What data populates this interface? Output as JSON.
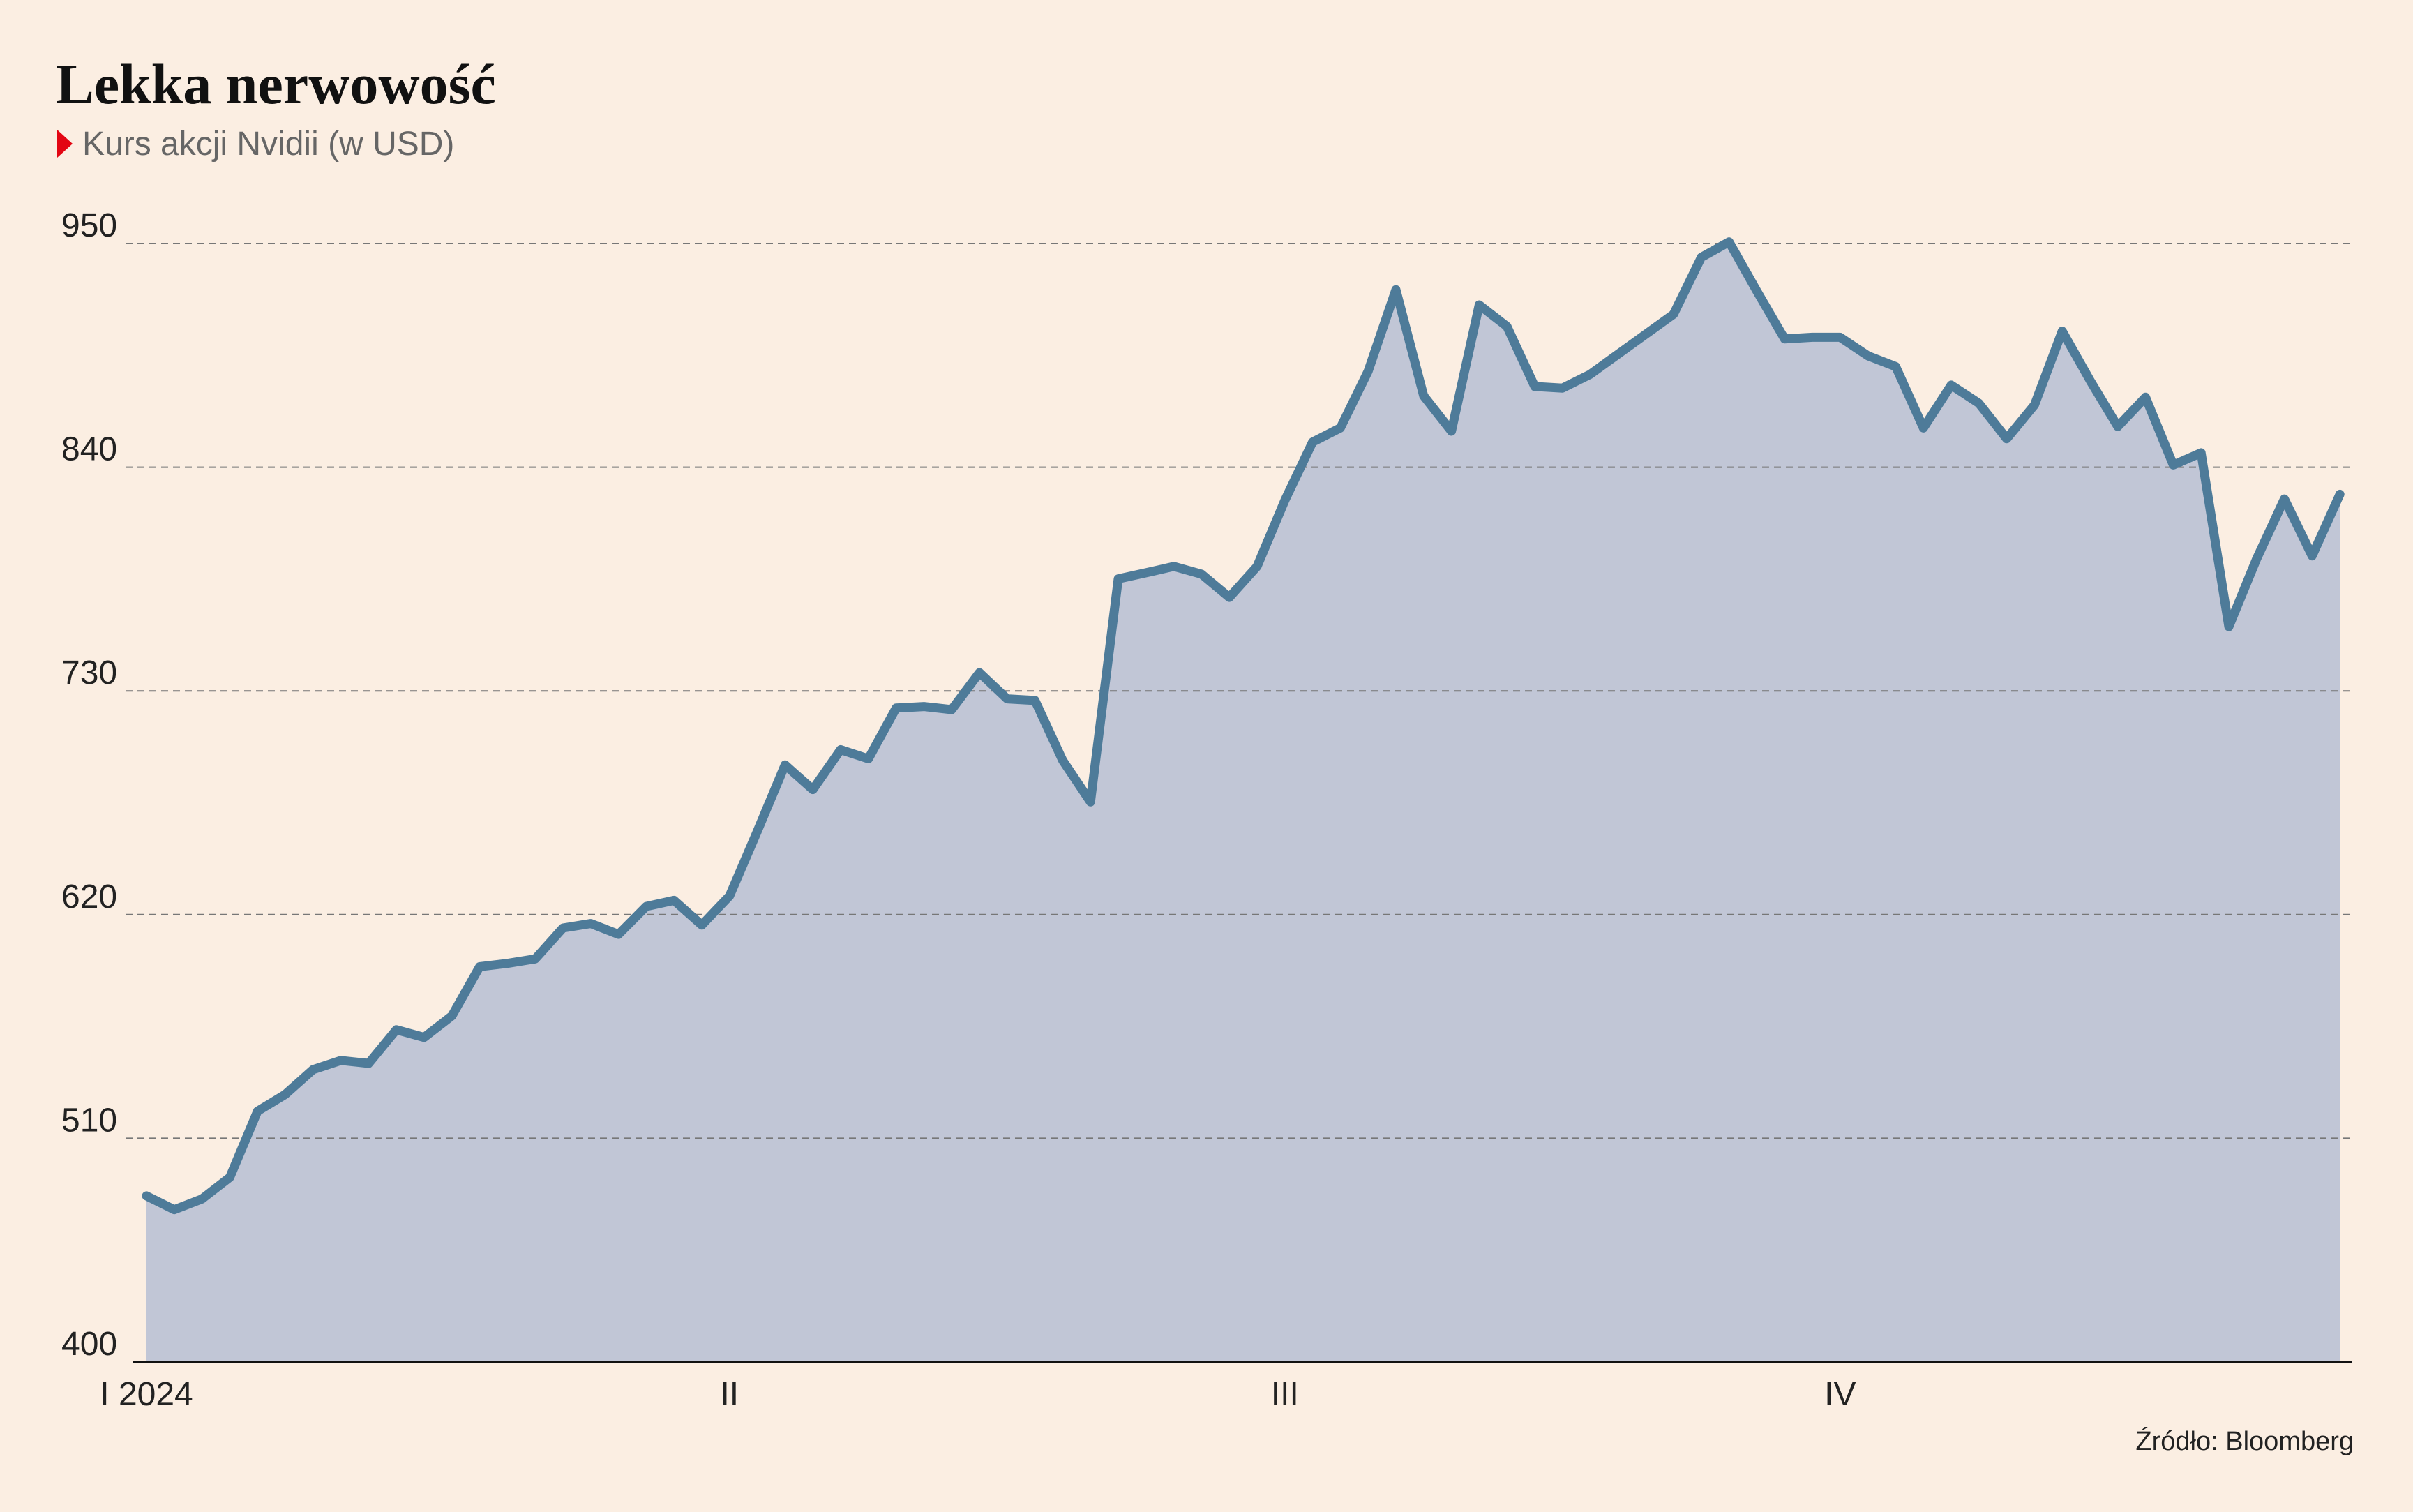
{
  "chart_data": {
    "type": "line",
    "title": "Lekka nerwowość",
    "subtitle": "Kurs akcji Nvidii (w USD)",
    "source": "Źródło: Bloomberg",
    "categories": [
      "I 2024",
      null,
      null,
      null,
      null,
      null,
      null,
      null,
      null,
      null,
      null,
      null,
      null,
      null,
      null,
      null,
      null,
      null,
      null,
      null,
      null,
      "II",
      null,
      null,
      null,
      null,
      null,
      null,
      null,
      null,
      null,
      null,
      null,
      null,
      null,
      null,
      null,
      null,
      null,
      null,
      null,
      "III",
      null,
      null,
      null,
      null,
      null,
      null,
      null,
      null,
      null,
      null,
      null,
      null,
      null,
      null,
      null,
      null,
      null,
      null,
      null,
      "IV",
      null,
      null,
      null,
      null,
      null,
      null,
      null,
      null,
      null,
      null,
      null,
      null,
      null,
      null,
      null,
      null,
      null,
      null
    ],
    "values": [
      481.7,
      474.9,
      480.2,
      490.8,
      523.3,
      531.6,
      543.8,
      548.3,
      546.8,
      563.4,
      559.6,
      570.2,
      594.4,
      596.0,
      598.2,
      613.4,
      615.6,
      610.3,
      624.0,
      627.0,
      614.9,
      629.2,
      661.0,
      693.6,
      681.5,
      701.1,
      696.6,
      721.6,
      722.3,
      720.8,
      739.0,
      726.1,
      725.3,
      695.8,
      675.4,
      785.1,
      788.1,
      791.2,
      787.4,
      776.0,
      791.2,
      823.7,
      852.4,
      859.3,
      887.2,
      927.3,
      875.1,
      857.7,
      919.8,
      909.2,
      879.7,
      878.9,
      885.7,
      895.6,
      905.4,
      915.2,
      943.2,
      950.8,
      926.6,
      903.1,
      903.9,
      903.9,
      894.8,
      889.5,
      859.3,
      880.4,
      871.4,
      854.0,
      870.6,
      906.9,
      882.7,
      860.0,
      874.4,
      841.1,
      847.1,
      761.6,
      794.9,
      824.4,
      796.4,
      826.7
    ],
    "color": "#4e7b99",
    "fill_color": "#c1c6d6",
    "marker_color": "#e30613",
    "ylim": [
      400,
      950
    ],
    "yticks": [
      400,
      510,
      620,
      730,
      840,
      950
    ],
    "grid": true
  }
}
